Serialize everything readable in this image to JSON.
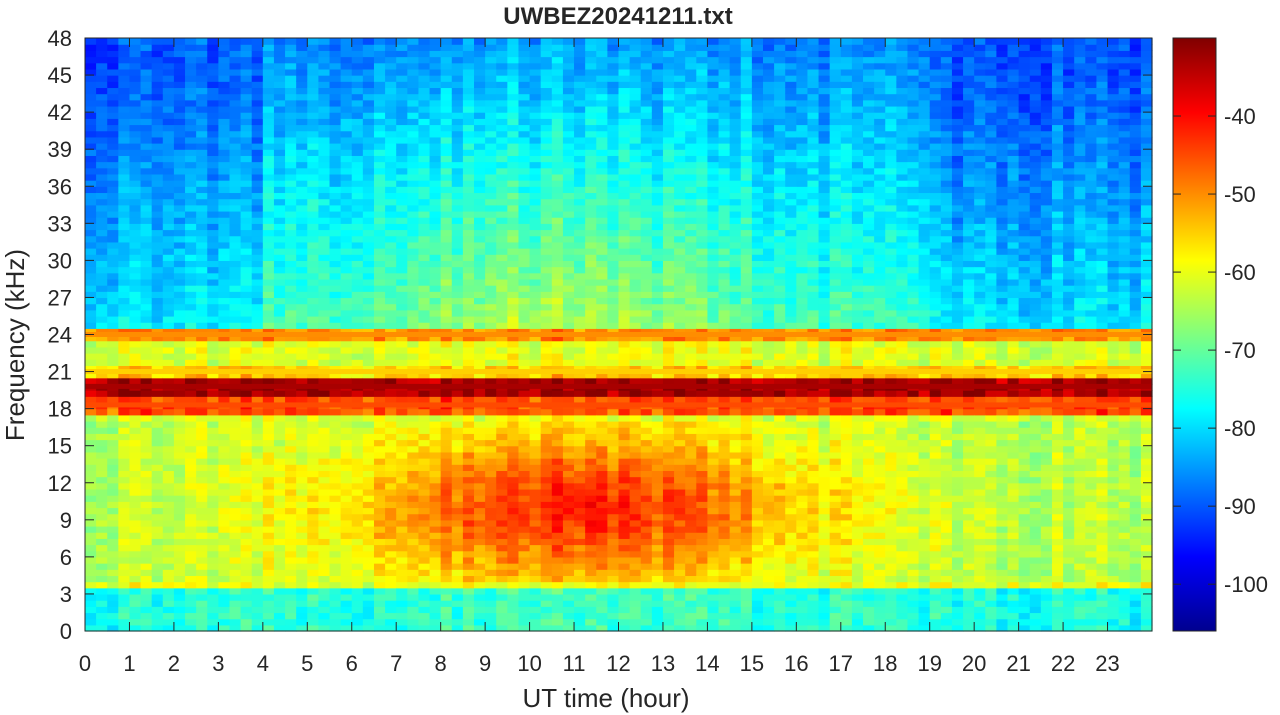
{
  "chart_data": {
    "type": "heatmap",
    "title": "UWBEZ20241211.txt",
    "xlabel": "UT time (hour)",
    "ylabel": "Frequency (kHz)",
    "xlim": [
      0,
      24
    ],
    "ylim": [
      0,
      48
    ],
    "x_ticks": [
      "0",
      "1",
      "2",
      "3",
      "4",
      "5",
      "6",
      "7",
      "8",
      "9",
      "10",
      "11",
      "12",
      "13",
      "14",
      "15",
      "16",
      "17",
      "18",
      "19",
      "20",
      "21",
      "22",
      "23"
    ],
    "y_ticks": [
      "0",
      "3",
      "6",
      "9",
      "12",
      "15",
      "18",
      "21",
      "24",
      "27",
      "30",
      "33",
      "36",
      "39",
      "42",
      "45",
      "48"
    ],
    "colorbar": {
      "colormap": "jet",
      "range": [
        -106,
        -30
      ],
      "ticks": [
        "-100",
        "-90",
        "-80",
        "-70",
        "-60",
        "-50",
        "-40"
      ]
    },
    "features": {
      "strong_band_khz": 19.8,
      "band_levels_db": [
        {
          "freq_khz": 19.8,
          "level_db": -33
        },
        {
          "freq_khz": 18.3,
          "level_db": -45
        },
        {
          "freq_khz": 24.0,
          "level_db": -50
        },
        {
          "freq_khz": 21.0,
          "level_db": -55
        }
      ],
      "daytime_noise": {
        "hours": [
          3.6,
          18.5
        ],
        "freq_khz": [
          4,
          17
        ],
        "peak_level_db": -46
      },
      "quiet_high_freq_level_db": -90
    }
  }
}
